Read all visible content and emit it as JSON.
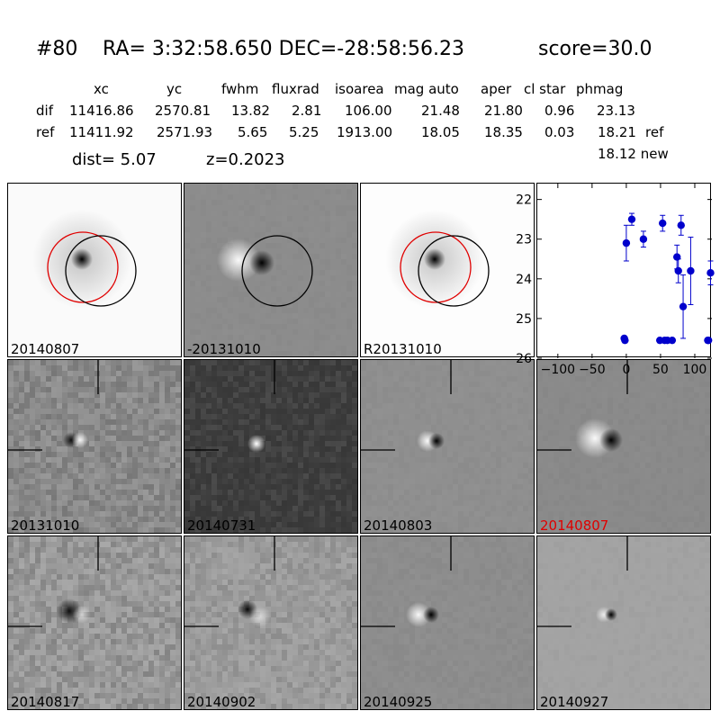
{
  "header": {
    "id": "#80",
    "coords": "RA= 3:32:58.650 DEC=-28:58:56.23",
    "score": "score=30.0"
  },
  "table": {
    "columns": [
      "xc",
      "yc",
      "fwhm",
      "fluxrad",
      "isoarea",
      "mag auto",
      "aper",
      "cl star",
      "phmag"
    ],
    "rows": [
      {
        "label": "dif",
        "values": [
          "11416.86",
          "2570.81",
          "13.82",
          "2.81",
          "106.00",
          "21.48",
          "21.80",
          "0.96",
          "23.13"
        ],
        "suffix": ""
      },
      {
        "label": "ref",
        "values": [
          "11411.92",
          "2571.93",
          "5.65",
          "5.25",
          "1913.00",
          "18.05",
          "18.35",
          "0.03",
          "18.21"
        ],
        "suffix": "ref"
      }
    ],
    "extra": "18.12 new",
    "dist": "dist=  5.07",
    "z": "z=0.2023"
  },
  "stamps": [
    {
      "label": "20140807",
      "kind": "new",
      "highlight": false
    },
    {
      "label": "-20131010",
      "kind": "diff",
      "highlight": false
    },
    {
      "label": "R20131010",
      "kind": "ref",
      "highlight": false
    },
    {
      "label": "20131010",
      "kind": "noisy_dipole",
      "highlight": false
    },
    {
      "label": "20140731",
      "kind": "dark_bright",
      "highlight": false
    },
    {
      "label": "20140803",
      "kind": "dipole",
      "highlight": false
    },
    {
      "label": "20140807",
      "kind": "big_dipole",
      "highlight": true
    },
    {
      "label": "20140817",
      "kind": "noisy_dark",
      "highlight": false
    },
    {
      "label": "20140902",
      "kind": "noisy_dark2",
      "highlight": false
    },
    {
      "label": "20140925",
      "kind": "dipole2",
      "highlight": false
    },
    {
      "label": "20140927",
      "kind": "small_dipole",
      "highlight": false
    }
  ],
  "colors": {
    "marker": "#0000cc",
    "highlight": "#e00000",
    "circle_red": "#e00000"
  },
  "chart_data": {
    "type": "scatter",
    "title": "",
    "xlabel": "",
    "ylabel": "",
    "xlim": [
      -130,
      125
    ],
    "ylim": [
      26,
      21.6
    ],
    "xticks": [
      -100,
      -50,
      0,
      50,
      100
    ],
    "xtick_labels": [
      "−100",
      "−50",
      "0",
      "50",
      "100"
    ],
    "yticks": [
      22,
      23,
      24,
      25,
      26
    ],
    "ytick_labels": [
      "22",
      "23",
      "24",
      "25",
      "26"
    ],
    "y_inverted": true,
    "points": [
      {
        "x": -3,
        "y": 25.5,
        "err": 0
      },
      {
        "x": -2,
        "y": 25.55,
        "err": 0
      },
      {
        "x": 0,
        "y": 23.1,
        "err": 0.45
      },
      {
        "x": 8,
        "y": 22.5,
        "err": 0.15
      },
      {
        "x": 25,
        "y": 23.0,
        "err": 0.2
      },
      {
        "x": 49,
        "y": 25.55,
        "err": 0
      },
      {
        "x": 53,
        "y": 22.6,
        "err": 0.2
      },
      {
        "x": 56,
        "y": 25.55,
        "err": 0
      },
      {
        "x": 60,
        "y": 25.55,
        "err": 0
      },
      {
        "x": 67,
        "y": 25.55,
        "err": 0
      },
      {
        "x": 74,
        "y": 23.45,
        "err": 0.3
      },
      {
        "x": 76,
        "y": 23.8,
        "err": 0.3
      },
      {
        "x": 80,
        "y": 22.65,
        "err": 0.25
      },
      {
        "x": 83,
        "y": 24.7,
        "err": 0.8
      },
      {
        "x": 94,
        "y": 23.8,
        "err": 0.85
      },
      {
        "x": 119,
        "y": 25.55,
        "err": 0
      },
      {
        "x": 120,
        "y": 25.55,
        "err": 0
      },
      {
        "x": 123,
        "y": 23.85,
        "err": 0.3
      }
    ]
  }
}
